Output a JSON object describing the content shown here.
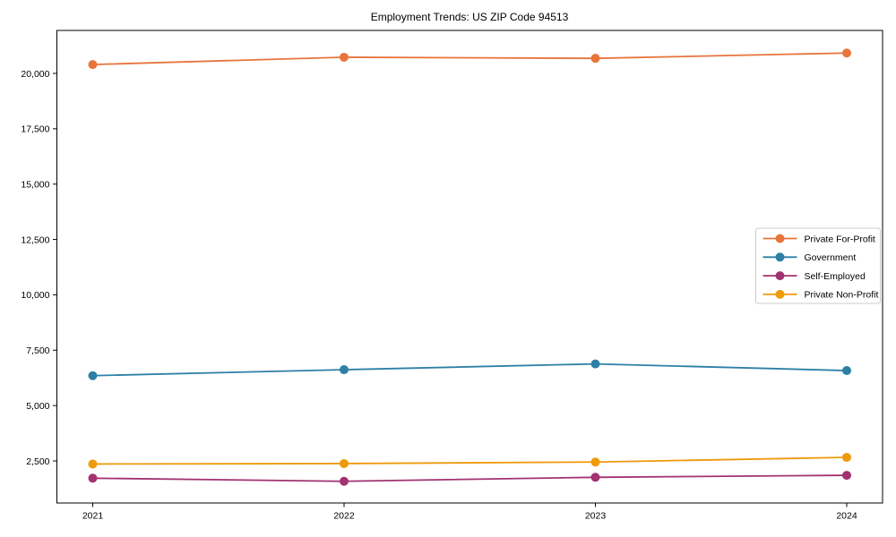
{
  "chart_data": {
    "type": "line",
    "title": "Employment Trends: US ZIP Code 94513",
    "xlabel": "",
    "ylabel": "",
    "x": [
      2021,
      2022,
      2023,
      2024
    ],
    "x_tick_labels": [
      "2021",
      "2022",
      "2023",
      "2024"
    ],
    "series": [
      {
        "name": "Private For-Profit",
        "color": "#E8743B",
        "values": [
          20400,
          20730,
          20680,
          20920
        ]
      },
      {
        "name": "Government",
        "color": "#2E7FA6",
        "values": [
          6350,
          6620,
          6880,
          6580
        ]
      },
      {
        "name": "Self-Employed",
        "color": "#A23272",
        "values": [
          1720,
          1580,
          1760,
          1850
        ]
      },
      {
        "name": "Private Non-Profit",
        "color": "#EE9A0C",
        "values": [
          2360,
          2380,
          2450,
          2660
        ]
      }
    ],
    "yticks": [
      2500,
      5000,
      7500,
      10000,
      12500,
      15000,
      17500,
      20000
    ],
    "ylim": [
      600,
      21940
    ],
    "grid": false,
    "legend_position": "center right",
    "marker": "circle",
    "axis_color": "#000000",
    "legend_border_color": "#cccccc"
  }
}
